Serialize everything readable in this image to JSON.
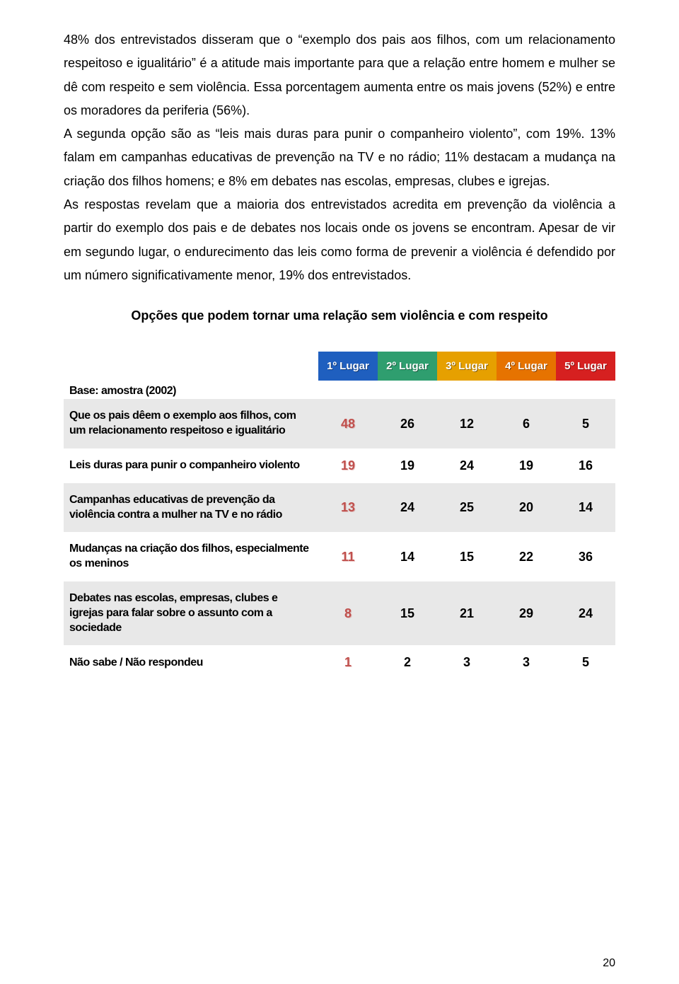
{
  "body_paragraphs": [
    "48% dos entrevistados disseram que o “exemplo dos pais aos filhos, com um relacionamento respeitoso e igualitário” é a atitude mais importante para que a relação entre homem e mulher se dê com respeito e sem violência. Essa porcentagem aumenta entre os mais jovens (52%) e entre os moradores da periferia (56%).",
    "A segunda opção são as “leis mais duras para punir o companheiro violento”, com 19%. 13% falam em campanhas educativas de prevenção na TV e no rádio; 11% destacam a mudança na criação dos filhos homens; e 8% em debates nas escolas, empresas, clubes e igrejas.",
    "As respostas revelam que a maioria dos entrevistados acredita em prevenção da violência a partir do exemplo dos pais e de debates nos locais onde os jovens se encontram. Apesar de vir em segundo lugar, o endurecimento das leis como forma de prevenir a violência é defendido por um número significativamente menor, 19% dos entrevistados."
  ],
  "chart_title": "Opções que podem tornar uma relação sem violência e com respeito",
  "table": {
    "headers": [
      "1º Lugar",
      "2º Lugar",
      "3º Lugar",
      "4º Lugar",
      "5º Lugar"
    ],
    "header_colors": [
      "#1f5fbf",
      "#2f9e6f",
      "#e6a000",
      "#e67300",
      "#d62020"
    ],
    "base_label": "Base: amostra (2002)",
    "rows": [
      {
        "label": "Que os pais dêem o exemplo aos filhos, com um relacionamento respeitoso e igualitário",
        "values": [
          "48",
          "26",
          "12",
          "6",
          "5"
        ],
        "bg": "#e8e8e8"
      },
      {
        "label": "Leis duras para punir o companheiro violento",
        "values": [
          "19",
          "19",
          "24",
          "19",
          "16"
        ],
        "bg": "#ffffff"
      },
      {
        "label": "Campanhas educativas de prevenção da violência contra a mulher na TV e no rádio",
        "values": [
          "13",
          "24",
          "25",
          "20",
          "14"
        ],
        "bg": "#e8e8e8"
      },
      {
        "label": "Mudanças na criação dos filhos, especialmente os meninos",
        "values": [
          "11",
          "14",
          "15",
          "22",
          "36"
        ],
        "bg": "#ffffff"
      },
      {
        "label": "Debates nas escolas, empresas, clubes e igrejas para falar sobre o assunto com a sociedade",
        "values": [
          "8",
          "15",
          "21",
          "29",
          "24"
        ],
        "bg": "#e8e8e8"
      },
      {
        "label": "Não sabe / Não respondeu",
        "values": [
          "1",
          "2",
          "3",
          "3",
          "5"
        ],
        "bg": "#ffffff"
      }
    ],
    "first_col_color": "#c0504d",
    "other_col_color": "#000000"
  },
  "page_number": "20"
}
